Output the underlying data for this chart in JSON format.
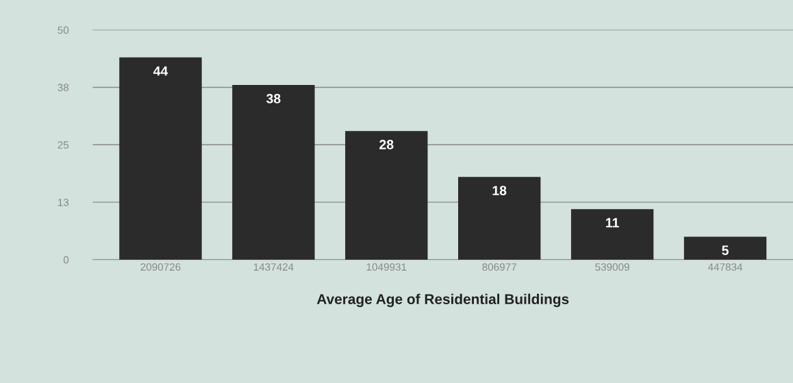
{
  "chart_data": {
    "type": "bar",
    "xlabel": "Average Age of Residential Buildings",
    "categories": [
      "2090726",
      "1437424",
      "1049931",
      "806977",
      "539009",
      "447834"
    ],
    "values": [
      44,
      38,
      28,
      18,
      11,
      5
    ],
    "color": "#2b2b2b",
    "ylim": [
      0,
      50
    ],
    "yticks": [
      0,
      {
        "value": 12.5,
        "label": "13"
      },
      25,
      {
        "value": 37.5,
        "label": "38"
      },
      50
    ],
    "grid": "y",
    "data_labels": true
  }
}
